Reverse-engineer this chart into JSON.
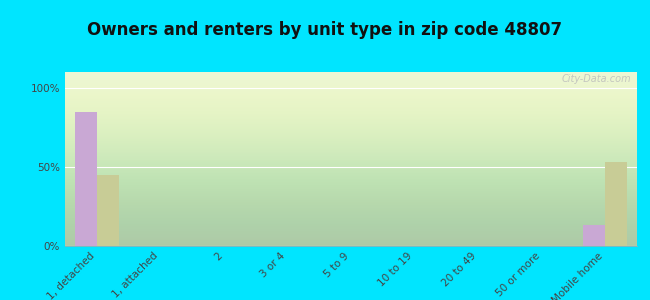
{
  "title": "Owners and renters by unit type in zip code 48807",
  "categories": [
    "1, detached",
    "1, attached",
    "2",
    "3 or 4",
    "5 to 9",
    "10 to 19",
    "20 to 49",
    "50 or more",
    "Mobile home"
  ],
  "owner_values": [
    85,
    0,
    0,
    0,
    0,
    0,
    0,
    0,
    13
  ],
  "renter_values": [
    45,
    0,
    0,
    0,
    0,
    0,
    0,
    0,
    53
  ],
  "owner_color": "#c9a8d4",
  "renter_color": "#c8cc96",
  "background_color": "#00e5ff",
  "yticks": [
    0,
    50,
    100
  ],
  "ytick_labels": [
    "0%",
    "50%",
    "100%"
  ],
  "ylim": [
    0,
    110
  ],
  "bar_width": 0.35,
  "watermark": "City-Data.com",
  "title_fontsize": 12,
  "tick_fontsize": 7.5,
  "legend_fontsize": 8
}
